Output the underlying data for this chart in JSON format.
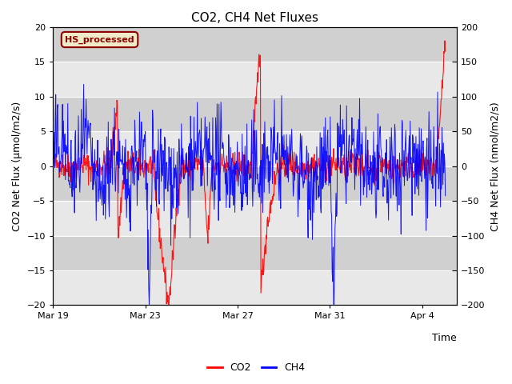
{
  "title": "CO2, CH4 Net Fluxes",
  "xlabel": "Time",
  "ylabel_left": "CO2 Net Flux (μmol/m2/s)",
  "ylabel_right": "CH4 Net Flux (nmol/m2/s)",
  "ylim_left": [
    -20,
    20
  ],
  "ylim_right": [
    -200,
    200
  ],
  "yticks_left": [
    -20,
    -15,
    -10,
    -5,
    0,
    5,
    10,
    15,
    20
  ],
  "yticks_right": [
    -200,
    -150,
    -100,
    -50,
    0,
    50,
    100,
    150,
    200
  ],
  "xtick_labels": [
    "Mar 19",
    "Mar 23",
    "Mar 27",
    "Mar 31",
    "Apr 4"
  ],
  "xtick_days": [
    0,
    4,
    8,
    12,
    16
  ],
  "xlim": [
    0,
    17.5
  ],
  "annotation_text": "HS_processed",
  "annotation_color": "#8B0000",
  "annotation_bg": "#F0EAC8",
  "bg_light": "#E8E8E8",
  "bg_dark": "#D0D0D0",
  "co2_color": "#FF0000",
  "ch4_color": "#0000FF",
  "title_fontsize": 11,
  "axis_label_fontsize": 9,
  "tick_fontsize": 8,
  "legend_fontsize": 9,
  "annotation_fontsize": 8,
  "seed": 42
}
